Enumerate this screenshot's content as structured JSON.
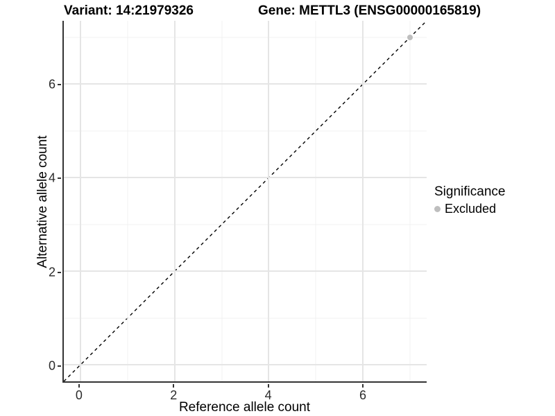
{
  "titles": {
    "variant": "Variant: 14:21979326",
    "gene": "Gene: METTL3 (ENSG00000165819)"
  },
  "chart_data": {
    "type": "scatter",
    "title_variant": "Variant: 14:21979326",
    "title_gene": "Gene: METTL3 (ENSG00000165819)",
    "xlabel": "Reference allele count",
    "ylabel": "Alternative allele count",
    "xlim": [
      -0.35,
      7.35
    ],
    "ylim": [
      -0.35,
      7.35
    ],
    "x_ticks": [
      0,
      2,
      4,
      6
    ],
    "y_ticks": [
      0,
      2,
      4,
      6
    ],
    "x_minor": [
      1,
      3,
      5,
      7
    ],
    "y_minor": [
      1,
      3,
      5,
      7
    ],
    "grid": true,
    "reference_line": {
      "equation": "y = x",
      "style": "dashed",
      "color": "#000000",
      "from": [
        -0.35,
        -0.35
      ],
      "to": [
        7.35,
        7.35
      ]
    },
    "series": [
      {
        "name": "Excluded",
        "color": "#bebebe",
        "points": [
          [
            7,
            7
          ]
        ]
      }
    ],
    "legend": {
      "title": "Significance",
      "position": "right",
      "entries": [
        {
          "label": "Excluded",
          "color": "#bebebe"
        }
      ]
    },
    "colors": {
      "axis_line": "#333333",
      "major_grid": "#e5e5e5",
      "minor_grid": "#f0f0f0",
      "excluded_point": "#bebebe"
    }
  }
}
